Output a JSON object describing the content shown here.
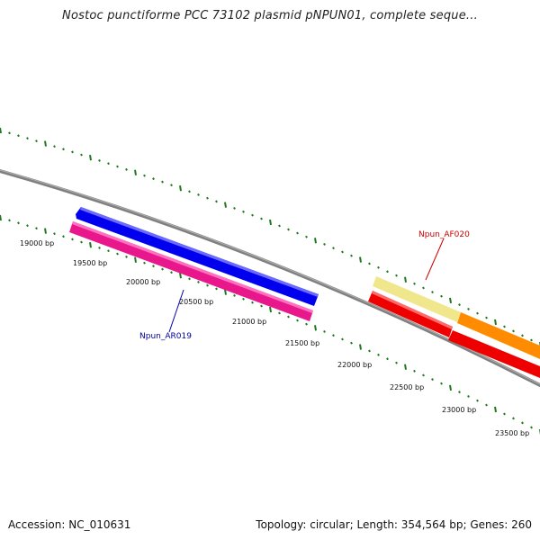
{
  "title": "Nostoc punctiforme PCC 73102 plasmid pNPUN01, complete seque...",
  "footer": {
    "accession": "Accession: NC_010631",
    "summary": "Topology: circular; Length: 354,564 bp; Genes: 260"
  },
  "scale_labels": [
    "19000 bp",
    "19500 bp",
    "20000 bp",
    "20500 bp",
    "21000 bp",
    "21500 bp",
    "22000 bp",
    "22500 bp",
    "23000 bp",
    "23500 bp"
  ],
  "features": [
    {
      "label": "Npun_AR019",
      "color": "#000099"
    },
    {
      "label": "Npun_AF020",
      "color": "#cc0000"
    }
  ],
  "colors": {
    "backbone": "#808080",
    "tick": "#1f7a1f",
    "gene_blue": "#0000ee",
    "gene_pink": "#e8188c",
    "gene_pale_yellow": "#f0e68c",
    "gene_orange": "#ff8c00",
    "gene_red": "#ee0000"
  }
}
